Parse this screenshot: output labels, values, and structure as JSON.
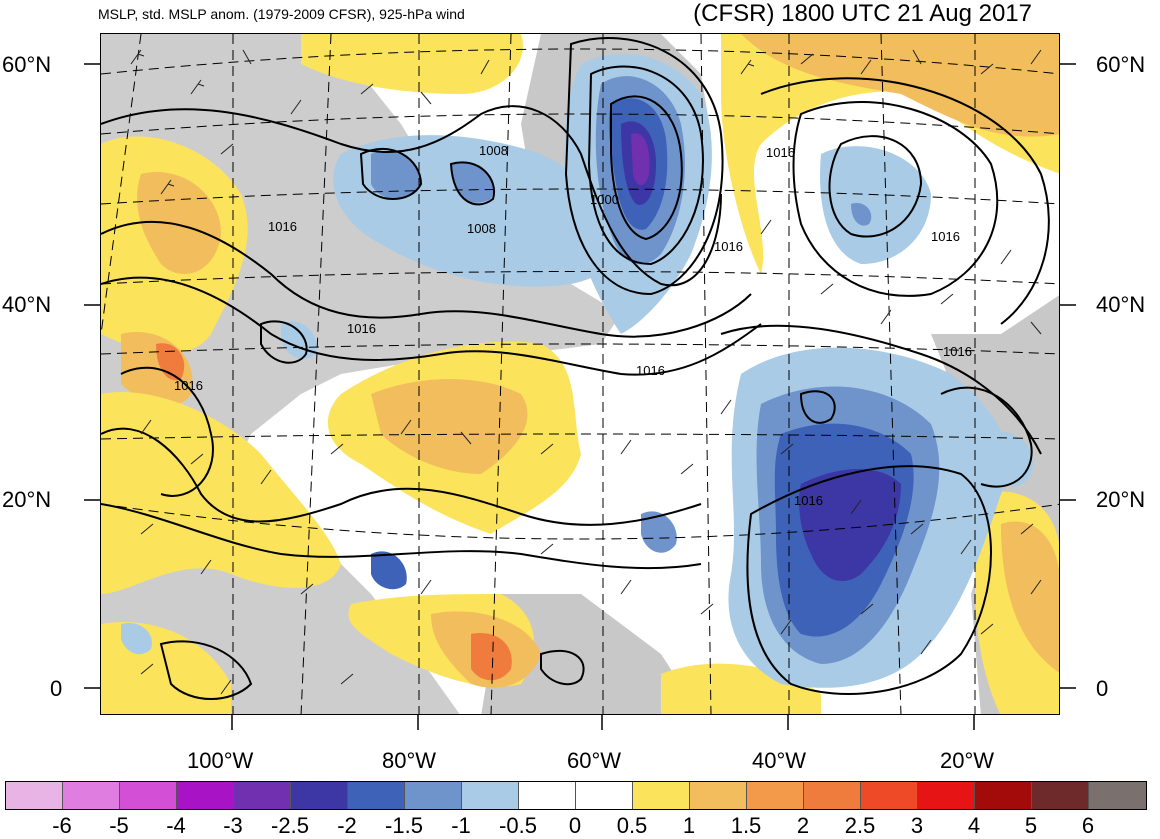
{
  "header": {
    "title_left": "MSLP, std. MSLP anom. (1979-2009 CFSR), 925-hPa wind",
    "title_right": "(CFSR) 1800 UTC 21 Aug 2017"
  },
  "axes": {
    "lat_left": [
      "60°N",
      "40°N",
      "20°N",
      "0"
    ],
    "lat_right": [
      "60°N",
      "40°N",
      "20°N",
      "0"
    ],
    "lon_bottom": [
      "100°W",
      "80°W",
      "60°W",
      "40°W",
      "20°W"
    ]
  },
  "isobar_labels": [
    "1008",
    "1008",
    "1000",
    "1016",
    "1016",
    "1016",
    "1016",
    "1016",
    "1016",
    "1016",
    "1016",
    "1016"
  ],
  "colorbar": {
    "labels": [
      "-6",
      "-5",
      "-4",
      "-3",
      "-2.5",
      "-2",
      "-1.5",
      "-1",
      "-0.5",
      "0",
      "0.5",
      "1",
      "1.5",
      "2",
      "2.5",
      "3",
      "4",
      "5",
      "6"
    ],
    "colors": [
      "#e8b4e6",
      "#e07de0",
      "#d24fd6",
      "#a813c6",
      "#7030b0",
      "#3c37a4",
      "#3d62b8",
      "#6f94cc",
      "#a9cbe6",
      "#ffffff",
      "#ffffff",
      "#fce35c",
      "#f2bd5c",
      "#f29a4a",
      "#ef7c3c",
      "#ee4a28",
      "#e61414",
      "#a30b0b",
      "#6e2a2a",
      "#7a706e"
    ]
  }
}
